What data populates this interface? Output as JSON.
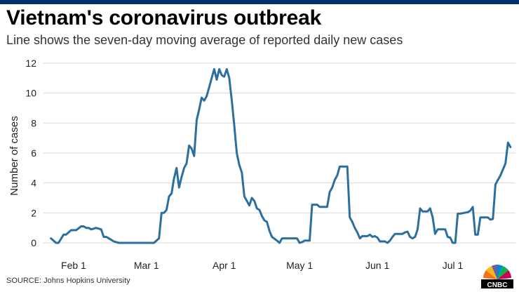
{
  "header": {
    "title": "Vietnam's coronavirus outbreak",
    "subtitle": "Line shows the seven-day moving average of reported daily new cases"
  },
  "footer": {
    "source": "SOURCE: Johns Hopkins University",
    "logo_text": "CNBC"
  },
  "colors": {
    "line": "#2b6fa0",
    "grid": "#d9d9d9",
    "brand_bar": "#002f6c"
  },
  "chart_data": {
    "type": "line",
    "title": "Vietnam's coronavirus outbreak",
    "subtitle": "Line shows the seven-day moving average of reported daily new cases",
    "ylabel": "Number of cases",
    "xlabel": "",
    "ylim": [
      0,
      12
    ],
    "yticks": [
      0,
      2,
      4,
      6,
      8,
      10,
      12
    ],
    "xticks": [
      {
        "date": "2020-02-01",
        "label": "Feb 1"
      },
      {
        "date": "2020-03-01",
        "label": "Mar 1"
      },
      {
        "date": "2020-04-01",
        "label": "Apr 1"
      },
      {
        "date": "2020-05-01",
        "label": "May 1"
      },
      {
        "date": "2020-06-01",
        "label": "Jun 1"
      },
      {
        "date": "2020-07-01",
        "label": "Jul 1"
      }
    ],
    "grid": "horizontal",
    "series": [
      {
        "points": [
          [
            "2020-01-23",
            0.3
          ],
          [
            "2020-01-25",
            0.0
          ],
          [
            "2020-01-26",
            0.0
          ],
          [
            "2020-01-28",
            0.55
          ],
          [
            "2020-01-29",
            0.55
          ],
          [
            "2020-01-31",
            0.85
          ],
          [
            "2020-02-02",
            0.85
          ],
          [
            "2020-02-04",
            1.1
          ],
          [
            "2020-02-05",
            1.1
          ],
          [
            "2020-02-06",
            1.0
          ],
          [
            "2020-02-07",
            1.0
          ],
          [
            "2020-02-08",
            0.9
          ],
          [
            "2020-02-10",
            1.0
          ],
          [
            "2020-02-12",
            0.9
          ],
          [
            "2020-02-13",
            0.4
          ],
          [
            "2020-02-14",
            0.4
          ],
          [
            "2020-02-15",
            0.3
          ],
          [
            "2020-02-17",
            0.1
          ],
          [
            "2020-02-19",
            0.0
          ],
          [
            "2020-03-04",
            0.0
          ],
          [
            "2020-03-06",
            0.3
          ],
          [
            "2020-03-07",
            2.0
          ],
          [
            "2020-03-08",
            2.0
          ],
          [
            "2020-03-09",
            2.2
          ],
          [
            "2020-03-10",
            3.1
          ],
          [
            "2020-03-11",
            3.3
          ],
          [
            "2020-03-12",
            4.3
          ],
          [
            "2020-03-13",
            5.0
          ],
          [
            "2020-03-14",
            3.7
          ],
          [
            "2020-03-15",
            4.4
          ],
          [
            "2020-03-16",
            5.0
          ],
          [
            "2020-03-17",
            5.3
          ],
          [
            "2020-03-18",
            6.5
          ],
          [
            "2020-03-19",
            6.3
          ],
          [
            "2020-03-20",
            5.8
          ],
          [
            "2020-03-21",
            8.2
          ],
          [
            "2020-03-22",
            8.9
          ],
          [
            "2020-03-23",
            9.7
          ],
          [
            "2020-03-24",
            9.5
          ],
          [
            "2020-03-25",
            9.8
          ],
          [
            "2020-03-26",
            10.4
          ],
          [
            "2020-03-27",
            11.0
          ],
          [
            "2020-03-28",
            11.6
          ],
          [
            "2020-03-29",
            10.9
          ],
          [
            "2020-03-30",
            11.6
          ],
          [
            "2020-03-31",
            11.2
          ],
          [
            "2020-04-01",
            11.1
          ],
          [
            "2020-04-02",
            11.6
          ],
          [
            "2020-04-03",
            11.0
          ],
          [
            "2020-04-04",
            9.5
          ],
          [
            "2020-04-05",
            7.8
          ],
          [
            "2020-04-06",
            6.0
          ],
          [
            "2020-04-07",
            5.2
          ],
          [
            "2020-04-08",
            4.7
          ],
          [
            "2020-04-09",
            3.1
          ],
          [
            "2020-04-10",
            2.8
          ],
          [
            "2020-04-11",
            2.5
          ],
          [
            "2020-04-12",
            3.0
          ],
          [
            "2020-04-13",
            2.8
          ],
          [
            "2020-04-14",
            2.3
          ],
          [
            "2020-04-15",
            2.2
          ],
          [
            "2020-04-16",
            1.8
          ],
          [
            "2020-04-17",
            1.5
          ],
          [
            "2020-04-18",
            1.4
          ],
          [
            "2020-04-19",
            0.8
          ],
          [
            "2020-04-20",
            0.4
          ],
          [
            "2020-04-22",
            0.15
          ],
          [
            "2020-04-23",
            0.0
          ],
          [
            "2020-04-24",
            0.3
          ],
          [
            "2020-04-30",
            0.3
          ],
          [
            "2020-05-01",
            0.0
          ],
          [
            "2020-05-02",
            0.05
          ],
          [
            "2020-05-03",
            0.15
          ],
          [
            "2020-05-05",
            0.15
          ],
          [
            "2020-05-06",
            2.55
          ],
          [
            "2020-05-08",
            2.55
          ],
          [
            "2020-05-09",
            2.4
          ],
          [
            "2020-05-12",
            2.4
          ],
          [
            "2020-05-13",
            3.4
          ],
          [
            "2020-05-14",
            3.7
          ],
          [
            "2020-05-15",
            4.2
          ],
          [
            "2020-05-16",
            4.5
          ],
          [
            "2020-05-17",
            5.1
          ],
          [
            "2020-05-20",
            5.1
          ],
          [
            "2020-05-21",
            1.7
          ],
          [
            "2020-05-22",
            1.4
          ],
          [
            "2020-05-23",
            1.0
          ],
          [
            "2020-05-24",
            0.7
          ],
          [
            "2020-05-25",
            0.3
          ],
          [
            "2020-05-26",
            0.45
          ],
          [
            "2020-05-28",
            0.45
          ],
          [
            "2020-05-29",
            0.55
          ],
          [
            "2020-05-30",
            0.4
          ],
          [
            "2020-05-31",
            0.45
          ],
          [
            "2020-06-01",
            0.35
          ],
          [
            "2020-06-02",
            0.1
          ],
          [
            "2020-06-04",
            0.1
          ],
          [
            "2020-06-05",
            0.0
          ],
          [
            "2020-06-06",
            0.15
          ],
          [
            "2020-06-07",
            0.4
          ],
          [
            "2020-06-08",
            0.6
          ],
          [
            "2020-06-11",
            0.6
          ],
          [
            "2020-06-12",
            0.7
          ],
          [
            "2020-06-13",
            0.75
          ],
          [
            "2020-06-14",
            0.4
          ],
          [
            "2020-06-15",
            0.3
          ],
          [
            "2020-06-16",
            0.4
          ],
          [
            "2020-06-17",
            0.9
          ],
          [
            "2020-06-18",
            2.3
          ],
          [
            "2020-06-19",
            2.1
          ],
          [
            "2020-06-21",
            2.1
          ],
          [
            "2020-06-22",
            2.3
          ],
          [
            "2020-06-23",
            1.7
          ],
          [
            "2020-06-24",
            0.6
          ],
          [
            "2020-06-25",
            0.9
          ],
          [
            "2020-06-28",
            0.9
          ],
          [
            "2020-06-29",
            0.4
          ],
          [
            "2020-06-30",
            0.35
          ],
          [
            "2020-07-01",
            0.0
          ],
          [
            "2020-07-02",
            0.0
          ],
          [
            "2020-07-03",
            1.95
          ],
          [
            "2020-07-04",
            1.95
          ],
          [
            "2020-07-07",
            2.05
          ],
          [
            "2020-07-08",
            2.15
          ],
          [
            "2020-07-09",
            2.4
          ],
          [
            "2020-07-10",
            0.55
          ],
          [
            "2020-07-11",
            0.55
          ],
          [
            "2020-07-12",
            1.7
          ],
          [
            "2020-07-15",
            1.7
          ],
          [
            "2020-07-16",
            1.55
          ],
          [
            "2020-07-17",
            1.6
          ],
          [
            "2020-07-18",
            3.9
          ],
          [
            "2020-07-19",
            4.2
          ],
          [
            "2020-07-20",
            4.5
          ],
          [
            "2020-07-21",
            4.9
          ],
          [
            "2020-07-22",
            5.3
          ],
          [
            "2020-07-23",
            6.7
          ],
          [
            "2020-07-24",
            6.4
          ]
        ]
      }
    ]
  }
}
